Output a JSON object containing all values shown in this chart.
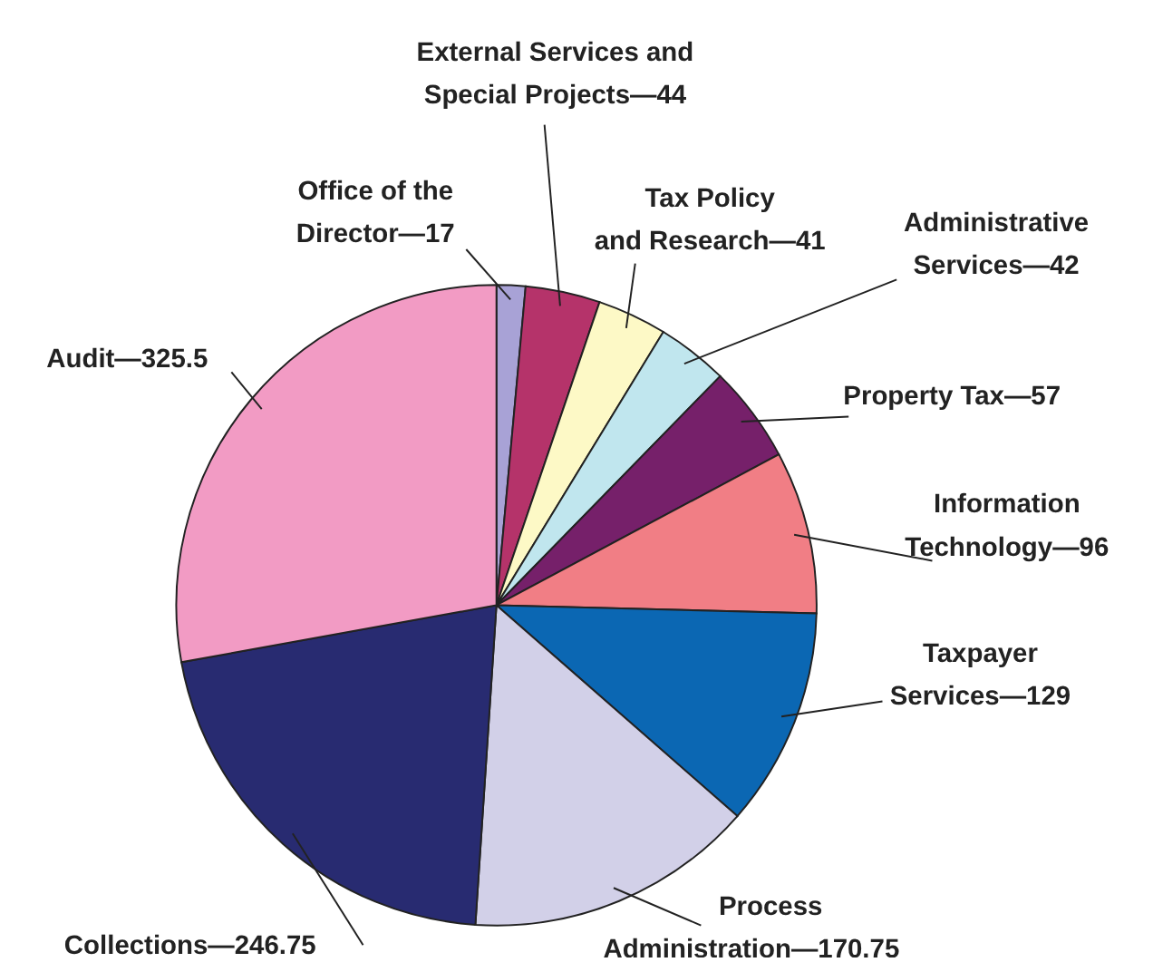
{
  "chart_data": {
    "type": "pie",
    "categories": [
      "Office of the Director—17",
      "External Services and Special Projects—44",
      "Tax Policy and Research—41",
      "Administrative Services—42",
      "Property Tax—57",
      "Information Technology—96",
      "Taxpayer Services—129",
      "Process Administration—170.75",
      "Collections—246.75",
      "Audit—325.5"
    ],
    "values": [
      17,
      44,
      41,
      42,
      57,
      96,
      129,
      170.75,
      246.75,
      325.5
    ],
    "colors": [
      "#a8a2d6",
      "#b5336a",
      "#fdf9c6",
      "#c0e6ee",
      "#76206a",
      "#f17e85",
      "#0b67b3",
      "#d2d0e8",
      "#282b71",
      "#f29bc4"
    ]
  }
}
